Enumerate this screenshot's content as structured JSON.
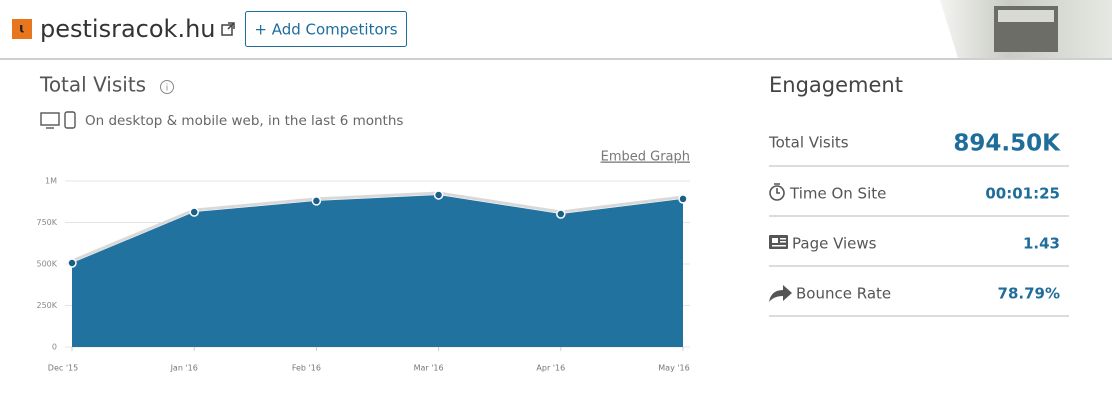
{
  "header": {
    "site": "pestisracok.hu",
    "button": "+ Add Competitors"
  },
  "total_visits": {
    "title": "Total Visits",
    "subtitle": "On desktop & mobile web, in the last 6 months",
    "embed_link": "Embed Graph"
  },
  "chart_data": {
    "type": "area",
    "categories": [
      "Dec '15",
      "Jan '16",
      "Feb '16",
      "Mar '16",
      "Apr '16",
      "May '16"
    ],
    "values": [
      506000,
      813000,
      880000,
      916000,
      801000,
      892000
    ],
    "color": "#21729f",
    "ylim": [
      0,
      1000000
    ],
    "yticks": [
      0,
      {
        "value": 250000,
        "label": "250K"
      },
      {
        "value": 500000,
        "label": "500K"
      },
      {
        "value": 750000,
        "label": "750K"
      },
      {
        "value": 1000000,
        "label": "1M"
      }
    ],
    "grid": true
  },
  "engagement": {
    "title": "Engagement",
    "rows": [
      {
        "label": "Total Visits",
        "value": "894.50K"
      },
      {
        "label": "Time On Site",
        "value": "00:01:25"
      },
      {
        "label": "Page Views",
        "value": "1.43"
      },
      {
        "label": "Bounce Rate",
        "value": "78.79%"
      }
    ]
  }
}
